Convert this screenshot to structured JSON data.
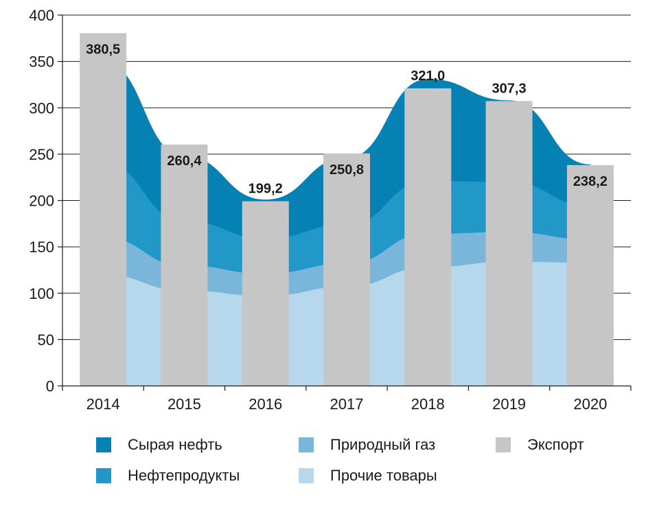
{
  "chart_data": {
    "type": "bar",
    "x": [
      "2014",
      "2015",
      "2016",
      "2017",
      "2018",
      "2019",
      "2020"
    ],
    "ylim": [
      0,
      400
    ],
    "yticks": [
      "0",
      "50",
      "100",
      "150",
      "200",
      "250",
      "300",
      "350",
      "400"
    ],
    "bar_series": {
      "name": "Экспорт",
      "values": [
        380.5,
        260.4,
        199.2,
        250.8,
        321.0,
        307.3,
        238.2
      ],
      "labels": [
        "380,5",
        "260,4",
        "199,2",
        "250,8",
        "321,0",
        "307,3",
        "238,2"
      ],
      "color": "#c6c6c6"
    },
    "area_series": [
      {
        "name": "Прочие товары",
        "color": "#b7d7ec",
        "values": [
          120,
          103,
          97,
          107,
          128,
          134,
          133
        ]
      },
      {
        "name": "Природный газ",
        "color": "#7ab5da",
        "values": [
          40,
          27,
          24,
          25,
          36,
          32,
          25
        ]
      },
      {
        "name": "Нефтепродукты",
        "color": "#2298c9",
        "values": [
          80,
          48,
          38,
          42,
          57,
          54,
          36
        ]
      },
      {
        "name": "Сырая нефть",
        "color": "#0581b3",
        "values": [
          110,
          70,
          42,
          72,
          110,
          88,
          45
        ]
      }
    ],
    "grid": true,
    "legend": "bottom"
  },
  "legend": {
    "items": [
      {
        "label": "Сырая нефть",
        "color": "#0581b3"
      },
      {
        "label": "Природный газ",
        "color": "#7ab5da"
      },
      {
        "label": "Экспорт",
        "color": "#c6c6c6"
      },
      {
        "label": "Нефтепродукты",
        "color": "#2298c9"
      },
      {
        "label": "Прочие товары",
        "color": "#b7d7ec"
      }
    ]
  }
}
